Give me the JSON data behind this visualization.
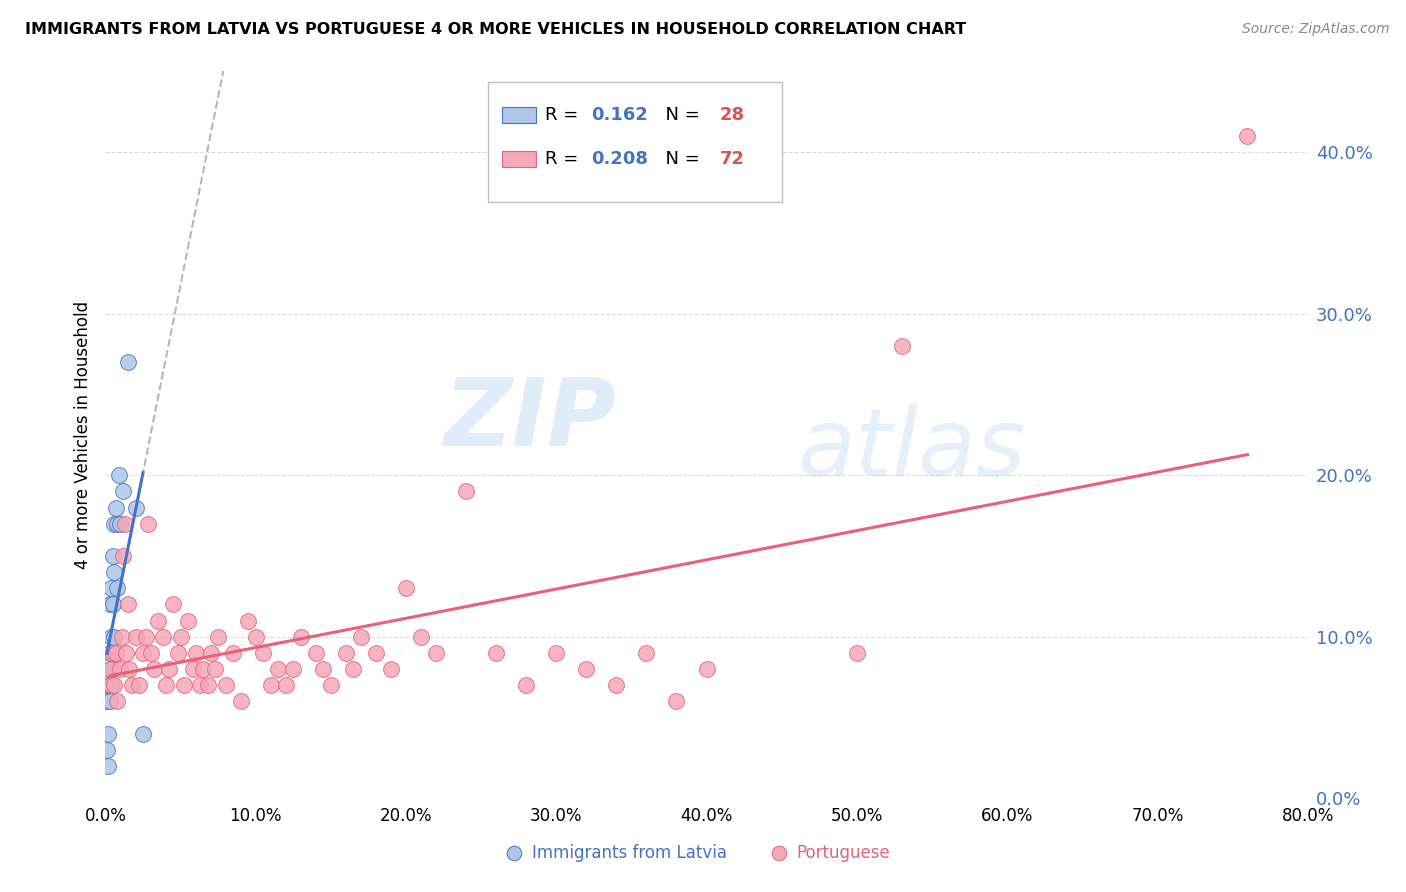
{
  "title": "IMMIGRANTS FROM LATVIA VS PORTUGUESE 4 OR MORE VEHICLES IN HOUSEHOLD CORRELATION CHART",
  "source": "Source: ZipAtlas.com",
  "ylabel": "4 or more Vehicles in Household",
  "xlim": [
    0.0,
    0.8
  ],
  "ylim": [
    0.0,
    0.45
  ],
  "xticks": [
    0.0,
    0.1,
    0.2,
    0.3,
    0.4,
    0.5,
    0.6,
    0.7,
    0.8
  ],
  "yticks": [
    0.0,
    0.1,
    0.2,
    0.3,
    0.4
  ],
  "latvia_color": "#aec6e8",
  "portuguese_color": "#f4a8b8",
  "trendline_latvia_color": "#4472c4",
  "trendline_portuguese_color": "#e8607a",
  "trendline_dashed_color": "#aaaaaa",
  "latvia_x": [
    0.001,
    0.001,
    0.002,
    0.002,
    0.002,
    0.003,
    0.003,
    0.003,
    0.003,
    0.004,
    0.004,
    0.004,
    0.005,
    0.005,
    0.005,
    0.006,
    0.006,
    0.006,
    0.007,
    0.007,
    0.008,
    0.008,
    0.009,
    0.01,
    0.012,
    0.015,
    0.02,
    0.025
  ],
  "latvia_y": [
    0.03,
    0.06,
    0.02,
    0.07,
    0.04,
    0.06,
    0.08,
    0.09,
    0.12,
    0.1,
    0.13,
    0.07,
    0.15,
    0.12,
    0.08,
    0.17,
    0.14,
    0.1,
    0.18,
    0.09,
    0.17,
    0.13,
    0.2,
    0.17,
    0.19,
    0.27,
    0.18,
    0.04
  ],
  "portuguese_x": [
    0.003,
    0.004,
    0.005,
    0.006,
    0.007,
    0.008,
    0.01,
    0.011,
    0.012,
    0.013,
    0.014,
    0.015,
    0.016,
    0.018,
    0.02,
    0.022,
    0.025,
    0.027,
    0.028,
    0.03,
    0.032,
    0.035,
    0.038,
    0.04,
    0.042,
    0.045,
    0.048,
    0.05,
    0.052,
    0.055,
    0.058,
    0.06,
    0.063,
    0.065,
    0.068,
    0.07,
    0.073,
    0.075,
    0.08,
    0.085,
    0.09,
    0.095,
    0.1,
    0.105,
    0.11,
    0.115,
    0.12,
    0.125,
    0.13,
    0.14,
    0.145,
    0.15,
    0.16,
    0.165,
    0.17,
    0.18,
    0.19,
    0.2,
    0.21,
    0.22,
    0.24,
    0.26,
    0.28,
    0.3,
    0.32,
    0.34,
    0.36,
    0.38,
    0.4,
    0.5,
    0.53,
    0.76
  ],
  "portuguese_y": [
    0.08,
    0.07,
    0.09,
    0.07,
    0.09,
    0.06,
    0.08,
    0.1,
    0.15,
    0.17,
    0.09,
    0.12,
    0.08,
    0.07,
    0.1,
    0.07,
    0.09,
    0.1,
    0.17,
    0.09,
    0.08,
    0.11,
    0.1,
    0.07,
    0.08,
    0.12,
    0.09,
    0.1,
    0.07,
    0.11,
    0.08,
    0.09,
    0.07,
    0.08,
    0.07,
    0.09,
    0.08,
    0.1,
    0.07,
    0.09,
    0.06,
    0.11,
    0.1,
    0.09,
    0.07,
    0.08,
    0.07,
    0.08,
    0.1,
    0.09,
    0.08,
    0.07,
    0.09,
    0.08,
    0.1,
    0.09,
    0.08,
    0.13,
    0.1,
    0.09,
    0.19,
    0.09,
    0.07,
    0.09,
    0.08,
    0.07,
    0.09,
    0.06,
    0.08,
    0.09,
    0.28,
    0.41
  ],
  "watermark_zip": "ZIP",
  "watermark_atlas": "atlas",
  "background_color": "#ffffff",
  "grid_color": "#cccccc"
}
